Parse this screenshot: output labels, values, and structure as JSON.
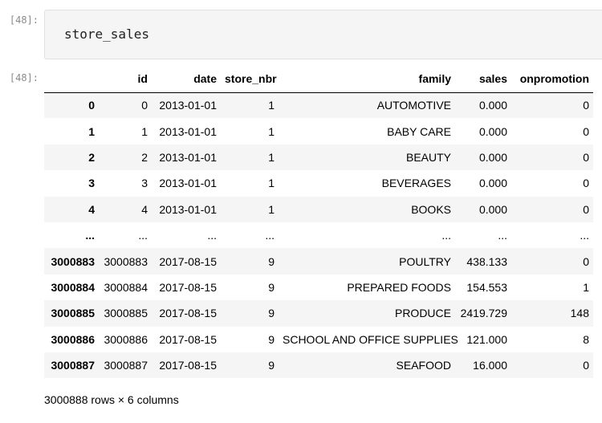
{
  "cell": {
    "input_prompt": "[48]:",
    "code": "store_sales",
    "output_prompt": "[48]:"
  },
  "table": {
    "columns": [
      "",
      "id",
      "date",
      "store_nbr",
      "family",
      "sales",
      "onpromotion"
    ],
    "rows": [
      [
        "0",
        "0",
        "2013-01-01",
        "1",
        "AUTOMOTIVE",
        "0.000",
        "0"
      ],
      [
        "1",
        "1",
        "2013-01-01",
        "1",
        "BABY CARE",
        "0.000",
        "0"
      ],
      [
        "2",
        "2",
        "2013-01-01",
        "1",
        "BEAUTY",
        "0.000",
        "0"
      ],
      [
        "3",
        "3",
        "2013-01-01",
        "1",
        "BEVERAGES",
        "0.000",
        "0"
      ],
      [
        "4",
        "4",
        "2013-01-01",
        "1",
        "BOOKS",
        "0.000",
        "0"
      ],
      [
        "...",
        "...",
        "...",
        "...",
        "...",
        "...",
        "..."
      ],
      [
        "3000883",
        "3000883",
        "2017-08-15",
        "9",
        "POULTRY",
        "438.133",
        "0"
      ],
      [
        "3000884",
        "3000884",
        "2017-08-15",
        "9",
        "PREPARED FOODS",
        "154.553",
        "1"
      ],
      [
        "3000885",
        "3000885",
        "2017-08-15",
        "9",
        "PRODUCE",
        "2419.729",
        "148"
      ],
      [
        "3000886",
        "3000886",
        "2017-08-15",
        "9",
        "SCHOOL AND OFFICE SUPPLIES",
        "121.000",
        "8"
      ],
      [
        "3000887",
        "3000887",
        "2017-08-15",
        "9",
        "SEAFOOD",
        "16.000",
        "0"
      ]
    ],
    "summary": "3000888 rows × 6 columns"
  }
}
